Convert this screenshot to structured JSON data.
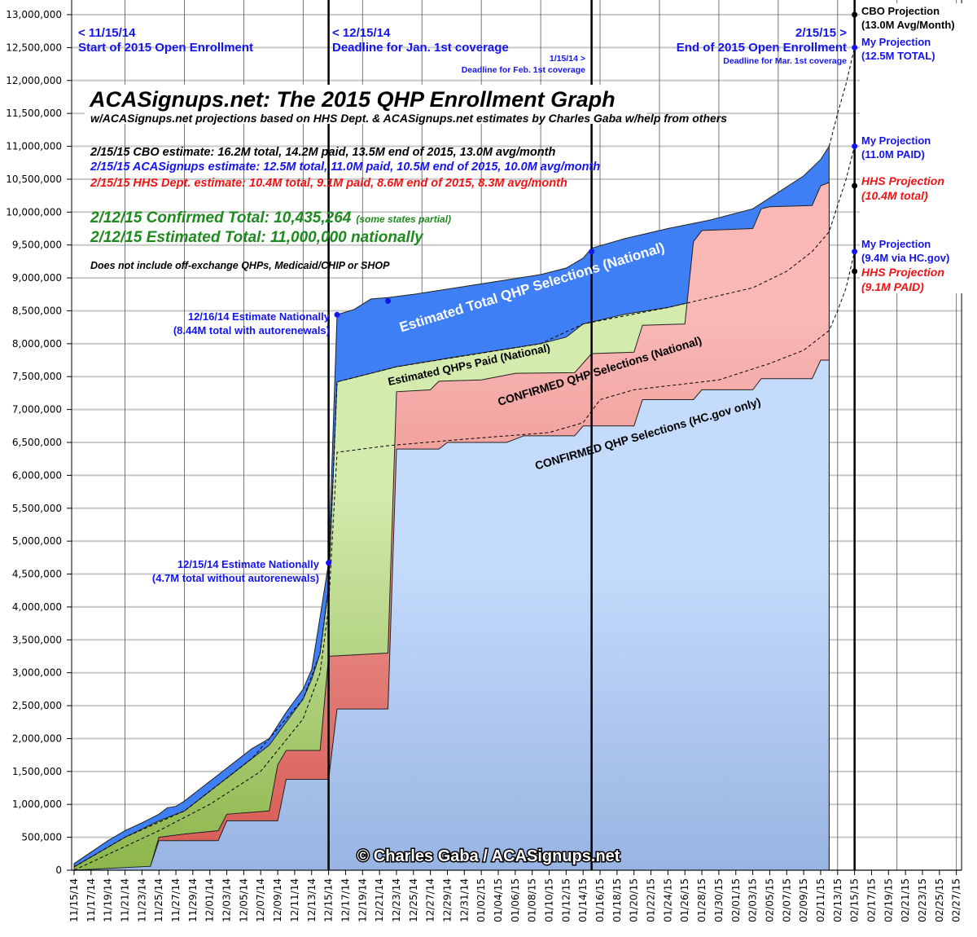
{
  "chart_data": {
    "type": "area",
    "title": "ACASignups.net: The 2015 QHP Enrollment Graph",
    "subtitle": "w/ACASignups.net projections based on HHS Dept. & ACASignups.net estimates by Charles Gaba w/help from others",
    "xlabel": "",
    "ylabel": "",
    "xlim": [
      "11/15/14",
      "02/28/15"
    ],
    "ylim": [
      0,
      13000000
    ],
    "grid": true,
    "legend": "none",
    "yticks": [
      "0",
      "500,000",
      "1,000,000",
      "1,500,000",
      "2,000,000",
      "2,500,000",
      "3,000,000",
      "3,500,000",
      "4,000,000",
      "4,500,000",
      "5,000,000",
      "5,500,000",
      "6,000,000",
      "6,500,000",
      "7,000,000",
      "7,500,000",
      "8,000,000",
      "8,500,000",
      "9,000,000",
      "9,500,000",
      "10,000,000",
      "10,500,000",
      "11,000,000",
      "11,500,000",
      "12,000,000",
      "12,500,000",
      "13,000,000"
    ],
    "xticks": [
      "11/15/14",
      "11/17/14",
      "11/19/14",
      "11/21/14",
      "11/23/14",
      "11/25/14",
      "11/27/14",
      "11/29/14",
      "12/01/14",
      "12/03/14",
      "12/05/14",
      "12/07/14",
      "12/09/14",
      "12/11/14",
      "12/13/14",
      "12/15/14",
      "12/17/14",
      "12/19/14",
      "12/21/14",
      "12/23/14",
      "12/25/14",
      "12/27/14",
      "12/29/14",
      "12/31/14",
      "01/02/15",
      "01/04/15",
      "01/06/15",
      "01/08/15",
      "01/10/15",
      "01/12/15",
      "01/14/15",
      "01/16/15",
      "01/18/15",
      "01/20/15",
      "01/22/15",
      "01/24/15",
      "01/26/15",
      "01/28/15",
      "01/30/15",
      "02/01/15",
      "02/03/15",
      "02/05/15",
      "02/07/15",
      "02/09/15",
      "02/11/15",
      "02/13/15",
      "02/15/15",
      "02/17/15",
      "02/19/15",
      "02/21/15",
      "02/23/15",
      "02/25/15",
      "02/27/15"
    ],
    "colors": {
      "total": "#3f7ff5",
      "paid_top": "#d4ebae",
      "paid_bottom": "#8db64c",
      "confirmed_top": "#f9b8b6",
      "confirmed_bottom": "#d65a52",
      "hcgov_top": "#c4dbfc",
      "hcgov_bottom": "#98b4e2"
    },
    "series": [
      {
        "key": "total",
        "label": "Estimated Total QHP Selections (National)",
        "points": [
          [
            "11/15/14",
            100000
          ],
          [
            "11/19/14",
            450000
          ],
          [
            "11/21/14",
            600000
          ],
          [
            "11/23/14",
            720000
          ],
          [
            "11/25/14",
            850000
          ],
          [
            "11/26/14",
            950000
          ],
          [
            "11/27/14",
            970000
          ],
          [
            "11/28/14",
            1050000
          ],
          [
            "11/30/14",
            1250000
          ],
          [
            "12/02/14",
            1450000
          ],
          [
            "12/04/14",
            1650000
          ],
          [
            "12/06/14",
            1850000
          ],
          [
            "12/08/14",
            2000000
          ],
          [
            "12/10/14",
            2400000
          ],
          [
            "12/12/14",
            2750000
          ],
          [
            "12/13/14",
            3050000
          ],
          [
            "12/14/14",
            3850000
          ],
          [
            "12/15/14",
            4670000
          ],
          [
            "12/16/14",
            8440000
          ],
          [
            "12/18/14",
            8520000
          ],
          [
            "12/20/14",
            8680000
          ],
          [
            "12/22/14",
            8700000
          ],
          [
            "12/25/14",
            8750000
          ],
          [
            "12/30/14",
            8850000
          ],
          [
            "01/04/15",
            8950000
          ],
          [
            "01/09/15",
            9050000
          ],
          [
            "01/12/15",
            9150000
          ],
          [
            "01/14/15",
            9300000
          ],
          [
            "01/15/15",
            9450000
          ],
          [
            "01/19/15",
            9600000
          ],
          [
            "01/24/15",
            9750000
          ],
          [
            "01/29/15",
            9880000
          ],
          [
            "02/03/15",
            10050000
          ],
          [
            "02/06/15",
            10300000
          ],
          [
            "02/09/15",
            10550000
          ],
          [
            "02/11/15",
            10800000
          ],
          [
            "02/12/15",
            11000000
          ]
        ]
      },
      {
        "key": "paid",
        "label": "Estimated QHPs Paid (National)",
        "points": [
          [
            "11/15/14",
            50000
          ],
          [
            "11/21/14",
            500000
          ],
          [
            "11/25/14",
            750000
          ],
          [
            "11/27/14",
            850000
          ],
          [
            "11/28/14",
            900000
          ],
          [
            "11/30/14",
            1100000
          ],
          [
            "12/02/14",
            1300000
          ],
          [
            "12/04/14",
            1500000
          ],
          [
            "12/06/14",
            1700000
          ],
          [
            "12/08/14",
            1900000
          ],
          [
            "12/10/14",
            2250000
          ],
          [
            "12/12/14",
            2600000
          ],
          [
            "12/13/14",
            2900000
          ],
          [
            "12/14/14",
            3300000
          ],
          [
            "12/15/14",
            4300000
          ],
          [
            "12/16/14",
            7420000
          ],
          [
            "12/20/14",
            7550000
          ],
          [
            "12/23/14",
            7650000
          ],
          [
            "12/30/14",
            7800000
          ],
          [
            "01/04/15",
            7900000
          ],
          [
            "01/09/15",
            8000000
          ],
          [
            "01/12/15",
            8100000
          ],
          [
            "01/14/15",
            8300000
          ],
          [
            "01/19/15",
            8450000
          ],
          [
            "01/24/15",
            8550000
          ],
          [
            "01/29/15",
            8700000
          ],
          [
            "02/03/15",
            8850000
          ],
          [
            "02/07/15",
            9100000
          ],
          [
            "02/10/15",
            9400000
          ],
          [
            "02/12/15",
            9700000
          ]
        ]
      },
      {
        "key": "confirmed",
        "label": "CONFIRMED QHP Selections (National)",
        "points": [
          [
            "11/15/14",
            0
          ],
          [
            "11/21/14",
            20000
          ],
          [
            "11/24/14",
            60000
          ],
          [
            "11/25/14",
            500000
          ],
          [
            "11/28/14",
            550000
          ],
          [
            "12/02/14",
            600000
          ],
          [
            "12/03/14",
            850000
          ],
          [
            "12/08/14",
            900000
          ],
          [
            "12/09/14",
            1600000
          ],
          [
            "12/10/14",
            1820000
          ],
          [
            "12/14/14",
            1820000
          ],
          [
            "12/15/14",
            3250000
          ],
          [
            "12/22/14",
            3300000
          ],
          [
            "12/23/14",
            7270000
          ],
          [
            "12/27/14",
            7300000
          ],
          [
            "12/28/14",
            7430000
          ],
          [
            "01/02/15",
            7450000
          ],
          [
            "01/06/15",
            7550000
          ],
          [
            "01/13/15",
            7560000
          ],
          [
            "01/15/15",
            7850000
          ],
          [
            "01/20/15",
            7870000
          ],
          [
            "01/21/15",
            8280000
          ],
          [
            "01/26/15",
            8300000
          ],
          [
            "01/27/15",
            9550000
          ],
          [
            "01/28/15",
            9720000
          ],
          [
            "02/03/15",
            9750000
          ],
          [
            "02/04/15",
            10050000
          ],
          [
            "02/05/15",
            10080000
          ],
          [
            "02/10/15",
            10100000
          ],
          [
            "02/11/15",
            10400000
          ],
          [
            "02/12/15",
            10450000
          ]
        ]
      },
      {
        "key": "hcgov",
        "label": "CONFIRMED QHP Selections (HC.gov only)",
        "points": [
          [
            "11/15/14",
            0
          ],
          [
            "11/24/14",
            60000
          ],
          [
            "11/25/14",
            450000
          ],
          [
            "12/02/14",
            450000
          ],
          [
            "12/03/14",
            750000
          ],
          [
            "12/09/14",
            750000
          ],
          [
            "12/10/14",
            1380000
          ],
          [
            "12/15/14",
            1380000
          ],
          [
            "12/16/14",
            2450000
          ],
          [
            "12/22/14",
            2450000
          ],
          [
            "12/23/14",
            6400000
          ],
          [
            "12/28/14",
            6400000
          ],
          [
            "12/29/14",
            6500000
          ],
          [
            "01/05/15",
            6500000
          ],
          [
            "01/07/15",
            6600000
          ],
          [
            "01/13/15",
            6600000
          ],
          [
            "01/14/15",
            6750000
          ],
          [
            "01/20/15",
            6750000
          ],
          [
            "01/21/15",
            7150000
          ],
          [
            "01/27/15",
            7150000
          ],
          [
            "01/28/15",
            7300000
          ],
          [
            "02/03/15",
            7300000
          ],
          [
            "02/04/15",
            7470000
          ],
          [
            "02/10/15",
            7470000
          ],
          [
            "02/11/15",
            7750000
          ],
          [
            "02/12/15",
            7750000
          ]
        ]
      }
    ],
    "dashed_lines": [
      {
        "key": "paid-projection",
        "points": [
          [
            "11/15/14",
            50000
          ],
          [
            "11/21/14",
            500000
          ],
          [
            "11/28/14",
            900000
          ],
          [
            "12/06/14",
            1700000
          ],
          [
            "12/12/14",
            2600000
          ],
          [
            "12/14/14",
            3300000
          ],
          [
            "12/15/14",
            4300000
          ],
          [
            "12/16/14",
            7420000
          ],
          [
            "12/23/14",
            7650000
          ],
          [
            "01/09/15",
            8000000
          ],
          [
            "01/14/15",
            8300000
          ],
          [
            "01/24/15",
            8550000
          ],
          [
            "02/03/15",
            8850000
          ],
          [
            "02/07/15",
            9100000
          ],
          [
            "02/10/15",
            9400000
          ],
          [
            "02/12/15",
            9700000
          ],
          [
            "02/13/15",
            10100000
          ],
          [
            "02/14/15",
            10500000
          ],
          [
            "02/15/15",
            11000000
          ]
        ]
      },
      {
        "key": "total-projection",
        "points": [
          [
            "02/12/15",
            11000000
          ],
          [
            "02/13/15",
            11500000
          ],
          [
            "02/14/15",
            11950000
          ],
          [
            "02/15/15",
            12500000
          ]
        ]
      },
      {
        "key": "hcgov-projection",
        "points": [
          [
            "11/15/14",
            0
          ],
          [
            "11/25/14",
            600000
          ],
          [
            "12/01/14",
            1000000
          ],
          [
            "12/07/14",
            1500000
          ],
          [
            "12/12/14",
            2300000
          ],
          [
            "12/14/14",
            3000000
          ],
          [
            "12/15/14",
            4000000
          ],
          [
            "12/16/14",
            6350000
          ],
          [
            "12/22/14",
            6450000
          ],
          [
            "12/31/14",
            6550000
          ],
          [
            "01/10/15",
            6650000
          ],
          [
            "01/14/15",
            6800000
          ],
          [
            "01/16/15",
            7150000
          ],
          [
            "01/20/15",
            7300000
          ],
          [
            "01/30/15",
            7450000
          ],
          [
            "02/05/15",
            7700000
          ],
          [
            "02/09/15",
            7900000
          ],
          [
            "02/12/15",
            8200000
          ],
          [
            "02/13/15",
            8500000
          ],
          [
            "02/14/15",
            8850000
          ],
          [
            "02/15/15",
            9400000
          ]
        ]
      }
    ],
    "markers": [
      {
        "date": "12/15/14",
        "value": 4670000,
        "color": "#1414f0"
      },
      {
        "date": "12/16/14",
        "value": 8440000,
        "color": "#1414f0"
      },
      {
        "date": "12/22/14",
        "value": 8650000,
        "color": "#1414f0"
      },
      {
        "date": "01/15/15",
        "value": 9400000,
        "color": "#1414f0"
      },
      {
        "date": "02/15/15",
        "value": 13000000,
        "color": "#000000"
      },
      {
        "date": "02/15/15",
        "value": 12500000,
        "color": "#1414f0"
      },
      {
        "date": "02/15/15",
        "value": 11000000,
        "color": "#1414f0"
      },
      {
        "date": "02/15/15",
        "value": 10400000,
        "color": "#000000"
      },
      {
        "date": "02/15/15",
        "value": 9400000,
        "color": "#1414f0"
      },
      {
        "date": "02/15/15",
        "value": 9100000,
        "color": "#000000"
      }
    ],
    "milestones": [
      "12/15/14",
      "01/15/15",
      "02/15/15"
    ],
    "annotations": {
      "start_date": "< 11/15/14",
      "start_label": "Start of 2015 Open Enrollment",
      "dec_date": "< 12/15/14",
      "dec_label": "Deadline for Jan. 1st coverage",
      "jan_date": "1/15/14 >",
      "jan_label": "Deadline for Feb. 1st coverage",
      "feb_date": "2/15/15 >",
      "feb_label": "End of 2015 Open Enrollment",
      "feb_sub": "Deadline for Mar. 1st coverage",
      "cbo_line": "2/15/15 CBO estimate: 16.2M total, 14.2M paid, 13.5M end of 2015, 13.0M avg/month",
      "aca_line": "2/15/15 ACASignups estimate: 12.5M total, 11.0M paid, 10.5M end of 2015, 10.0M avg/month",
      "hhs_line": "2/15/15 HHS Dept. estimate: 10.4M total, 9.1M paid, 8.6M end of 2015, 8.3M avg/month",
      "confirmed_total": "2/12/15 Confirmed Total: 10,435,264",
      "confirmed_note": "(some states partial)",
      "estimated_total": "2/12/15 Estimated Total: 11,000,000 nationally",
      "disclaimer": "Does not include off-exchange QHPs, Medicaid/CHIP or SHOP",
      "dec16_a": "12/16/14 Estimate Nationally",
      "dec16_b": "(8.44M total with autorenewals)",
      "dec15_a": "12/15/14 Estimate Nationally",
      "dec15_b": "(4.7M total without autorenewals)",
      "cbo_proj_a": "CBO Projection",
      "cbo_proj_b": "(13.0M Avg/Month)",
      "my_proj_1a": "My Projection",
      "my_proj_1b": "(12.5M TOTAL)",
      "my_proj_2a": "My Projection",
      "my_proj_2b": "(11.0M PAID)",
      "hhs_proj_1a": "HHS Projection",
      "hhs_proj_1b": "(10.4M total)",
      "my_proj_3a": "My Projection",
      "my_proj_3b": "(9.4M via HC.gov)",
      "hhs_proj_2a": "HHS Projection",
      "hhs_proj_2b": "(9.1M PAID)",
      "copyright": "© Charles Gaba / ACASignups.net"
    }
  }
}
